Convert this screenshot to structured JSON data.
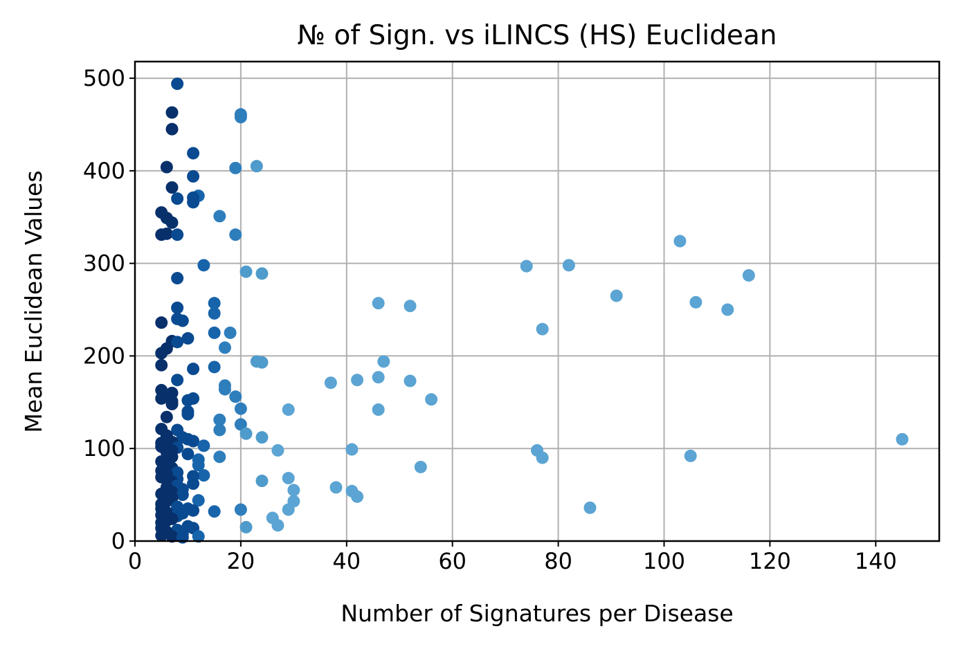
{
  "chart_data": {
    "type": "scatter",
    "title": "№ of Sign. vs iLINCS (HS) Euclidean",
    "xlabel": "Number of Signatures per Disease",
    "ylabel": "Mean Euclidean Values",
    "xlim": [
      0,
      152
    ],
    "ylim": [
      0,
      518
    ],
    "xticks": [
      0,
      20,
      40,
      60,
      80,
      100,
      120,
      140
    ],
    "yticks": [
      0,
      100,
      200,
      300,
      400,
      500
    ],
    "grid": true,
    "colormap": [
      "#08306b",
      "#0a4a90",
      "#1764ab",
      "#2f7ebc",
      "#4f9bcb",
      "#5ba4d3"
    ],
    "points": [
      [
        8,
        494
      ],
      [
        7,
        463
      ],
      [
        20,
        461
      ],
      [
        20,
        458
      ],
      [
        7,
        445
      ],
      [
        11,
        419
      ],
      [
        23,
        405
      ],
      [
        6,
        404
      ],
      [
        19,
        403
      ],
      [
        11,
        394
      ],
      [
        7,
        382
      ],
      [
        12,
        373
      ],
      [
        11,
        371
      ],
      [
        8,
        370
      ],
      [
        11,
        366
      ],
      [
        5,
        355
      ],
      [
        16,
        351
      ],
      [
        6,
        349
      ],
      [
        7,
        344
      ],
      [
        5,
        331
      ],
      [
        6,
        332
      ],
      [
        8,
        331
      ],
      [
        19,
        331
      ],
      [
        103,
        324
      ],
      [
        82,
        298
      ],
      [
        13,
        298
      ],
      [
        74,
        297
      ],
      [
        21,
        291
      ],
      [
        24,
        289
      ],
      [
        116,
        287
      ],
      [
        8,
        284
      ],
      [
        91,
        265
      ],
      [
        106,
        258
      ],
      [
        46,
        257
      ],
      [
        15,
        257
      ],
      [
        52,
        254
      ],
      [
        8,
        252
      ],
      [
        112,
        250
      ],
      [
        15,
        246
      ],
      [
        8,
        240
      ],
      [
        9,
        238
      ],
      [
        5,
        236
      ],
      [
        77,
        229
      ],
      [
        15,
        225
      ],
      [
        18,
        225
      ],
      [
        10,
        219
      ],
      [
        7,
        216
      ],
      [
        8,
        215
      ],
      [
        17,
        209
      ],
      [
        6,
        208
      ],
      [
        5,
        203
      ],
      [
        47,
        194
      ],
      [
        23,
        194
      ],
      [
        24,
        193
      ],
      [
        5,
        190
      ],
      [
        11,
        186
      ],
      [
        15,
        188
      ],
      [
        46,
        177
      ],
      [
        42,
        174
      ],
      [
        8,
        174
      ],
      [
        52,
        173
      ],
      [
        37,
        171
      ],
      [
        17,
        168
      ],
      [
        17,
        164
      ],
      [
        5,
        163
      ],
      [
        7,
        160
      ],
      [
        19,
        156
      ],
      [
        5,
        154
      ],
      [
        11,
        154
      ],
      [
        10,
        152
      ],
      [
        56,
        153
      ],
      [
        7,
        151
      ],
      [
        7,
        148
      ],
      [
        20,
        143
      ],
      [
        29,
        142
      ],
      [
        46,
        142
      ],
      [
        10,
        140
      ],
      [
        10,
        137
      ],
      [
        6,
        134
      ],
      [
        16,
        131
      ],
      [
        20,
        126
      ],
      [
        8,
        120
      ],
      [
        5,
        121
      ],
      [
        16,
        120
      ],
      [
        21,
        116
      ],
      [
        6,
        114
      ],
      [
        9,
        112
      ],
      [
        24,
        112
      ],
      [
        145,
        110
      ],
      [
        10,
        110
      ],
      [
        11,
        108
      ],
      [
        7,
        107
      ],
      [
        5,
        106
      ],
      [
        6,
        104
      ],
      [
        13,
        103
      ],
      [
        5,
        102
      ],
      [
        8,
        101
      ],
      [
        7,
        98
      ],
      [
        27,
        98
      ],
      [
        41,
        99
      ],
      [
        76,
        98
      ],
      [
        6,
        96
      ],
      [
        10,
        94
      ],
      [
        105,
        92
      ],
      [
        7,
        91
      ],
      [
        16,
        91
      ],
      [
        77,
        90
      ],
      [
        12,
        88
      ],
      [
        5,
        86
      ],
      [
        6,
        84
      ],
      [
        12,
        82
      ],
      [
        54,
        80
      ],
      [
        7,
        79
      ],
      [
        5,
        76
      ],
      [
        8,
        74
      ],
      [
        6,
        72
      ],
      [
        13,
        71
      ],
      [
        11,
        70
      ],
      [
        5,
        69
      ],
      [
        29,
        68
      ],
      [
        8,
        67
      ],
      [
        6,
        66
      ],
      [
        24,
        65
      ],
      [
        7,
        64
      ],
      [
        11,
        62
      ],
      [
        8,
        60
      ],
      [
        6,
        58
      ],
      [
        38,
        58
      ],
      [
        9,
        56
      ],
      [
        30,
        55
      ],
      [
        41,
        54
      ],
      [
        7,
        53
      ],
      [
        5,
        51
      ],
      [
        9,
        50
      ],
      [
        42,
        48
      ],
      [
        7,
        47
      ],
      [
        12,
        44
      ],
      [
        6,
        43
      ],
      [
        30,
        43
      ],
      [
        5,
        40
      ],
      [
        8,
        37
      ],
      [
        86,
        36
      ],
      [
        5,
        35
      ],
      [
        10,
        35
      ],
      [
        20,
        34
      ],
      [
        29,
        34
      ],
      [
        11,
        33
      ],
      [
        15,
        32
      ],
      [
        6,
        31
      ],
      [
        9,
        30
      ],
      [
        5,
        28
      ],
      [
        8,
        27
      ],
      [
        26,
        25
      ],
      [
        7,
        24
      ],
      [
        6,
        22
      ],
      [
        5,
        20
      ],
      [
        27,
        17
      ],
      [
        10,
        16
      ],
      [
        21,
        15
      ],
      [
        5,
        14
      ],
      [
        11,
        14
      ],
      [
        8,
        12
      ],
      [
        6,
        10
      ],
      [
        9,
        8
      ],
      [
        5,
        6
      ],
      [
        12,
        5
      ],
      [
        7,
        5
      ],
      [
        9,
        4
      ]
    ]
  }
}
